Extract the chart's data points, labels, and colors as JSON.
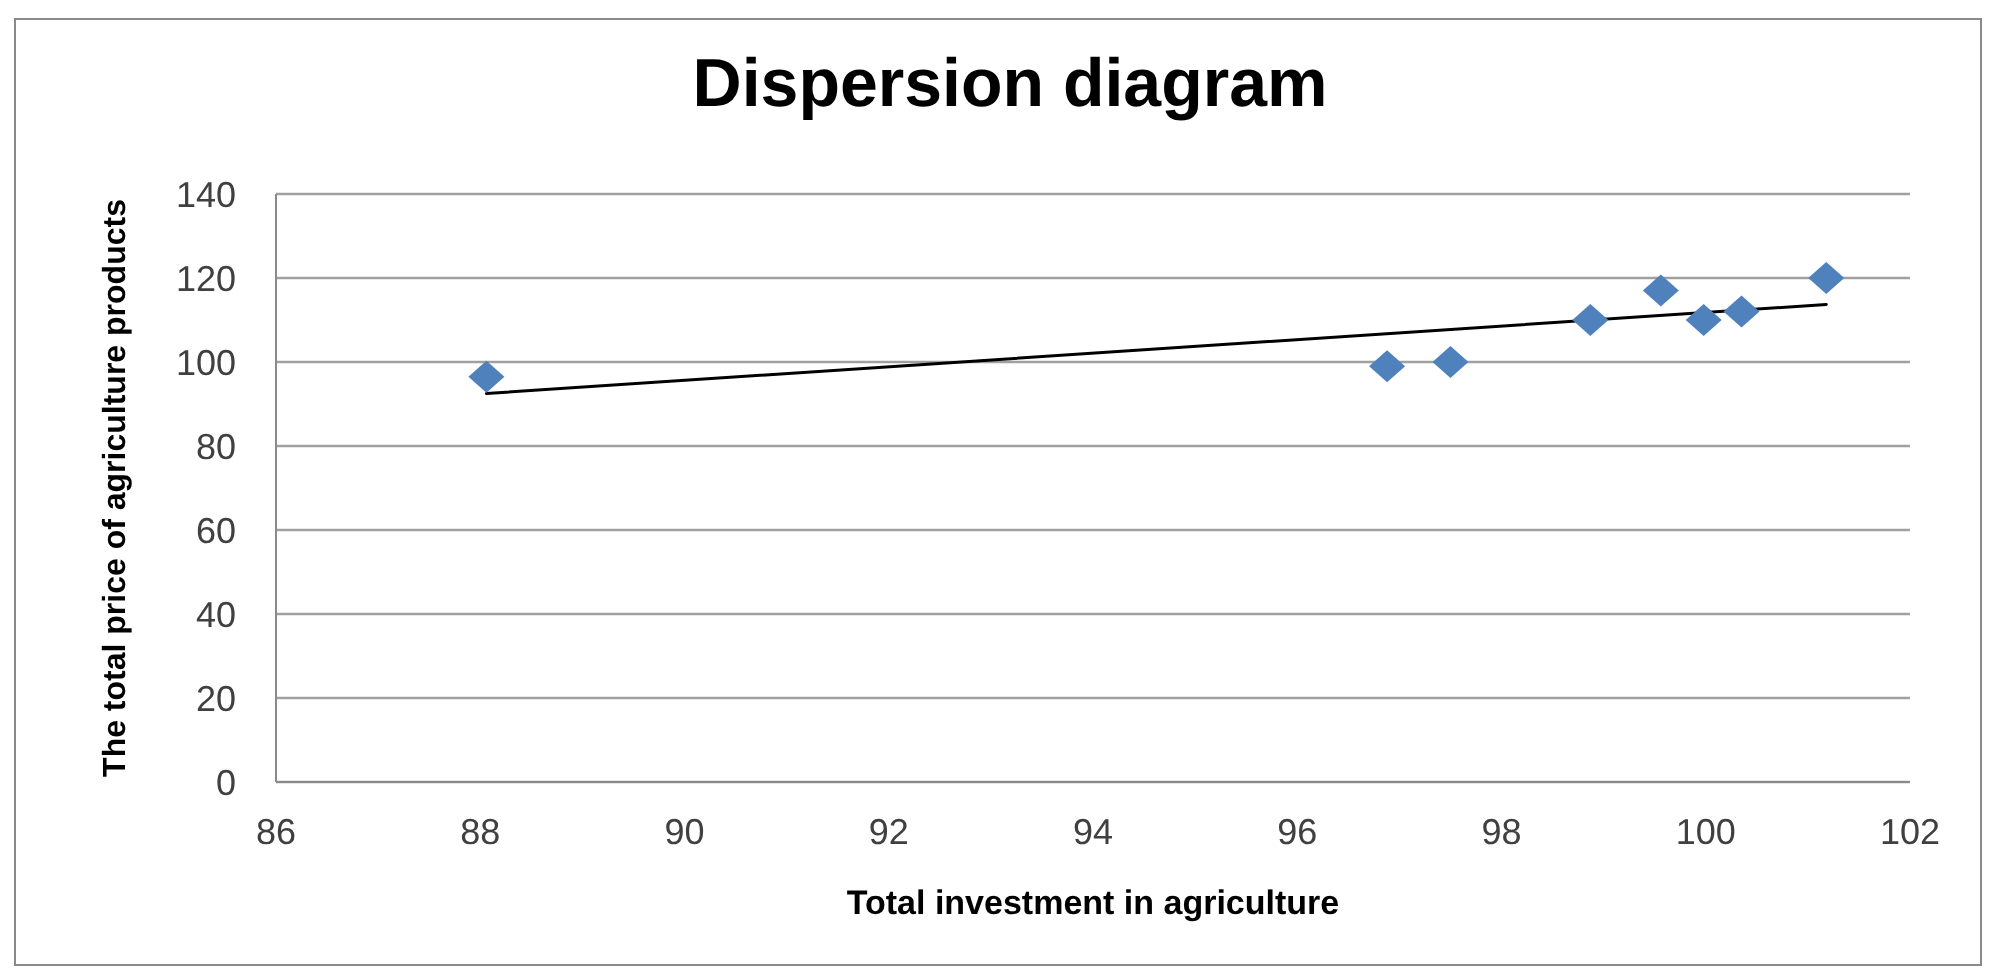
{
  "chart_data": {
    "type": "scatter",
    "title": "Dispersion diagram",
    "xlabel": "Total investment in agriculture",
    "ylabel": "The total price of agriculture products",
    "xlim": [
      86,
      102
    ],
    "xticks": [
      86,
      88,
      90,
      92,
      94,
      96,
      98,
      100,
      102
    ],
    "ylim": [
      0,
      140
    ],
    "yticks": [
      0,
      20,
      40,
      60,
      80,
      100,
      120,
      140
    ],
    "grid": "y",
    "marker": "diamond",
    "series": [
      {
        "color": "#4f81bd",
        "x": [
          88.06,
          96.88,
          97.5,
          98.87,
          99.56,
          99.98,
          100.35,
          101.18
        ],
        "values": [
          96.5,
          99,
          100,
          110,
          117,
          110,
          112,
          120
        ]
      },
      {
        "type": "line",
        "color": "#000000",
        "marker": "none",
        "x": [
          88.06,
          101.18
        ],
        "values": [
          92.5,
          113.7
        ]
      }
    ]
  }
}
